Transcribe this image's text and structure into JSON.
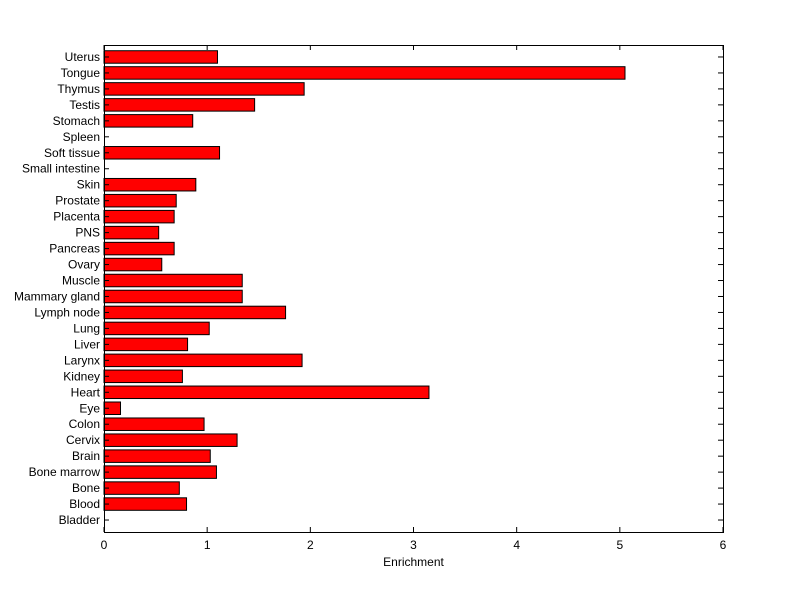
{
  "chart_data": {
    "type": "bar",
    "orientation": "horizontal",
    "title": "",
    "xlabel": "Enrichment",
    "ylabel": "",
    "xlim": [
      0,
      6
    ],
    "xticks": [
      0,
      1,
      2,
      3,
      4,
      5,
      6
    ],
    "grid": false,
    "legend": "none",
    "bar_color": "#ff0000",
    "bar_edge_color": "#000000",
    "categories": [
      "Uterus",
      "Tongue",
      "Thymus",
      "Testis",
      "Stomach",
      "Spleen",
      "Soft tissue",
      "Small intestine",
      "Skin",
      "Prostate",
      "Placenta",
      "PNS",
      "Pancreas",
      "Ovary",
      "Muscle",
      "Mammary gland",
      "Lymph node",
      "Lung",
      "Liver",
      "Larynx",
      "Kidney",
      "Heart",
      "Eye",
      "Colon",
      "Cervix",
      "Brain",
      "Bone marrow",
      "Bone",
      "Blood",
      "Bladder"
    ],
    "values": [
      1.1,
      5.05,
      1.94,
      1.46,
      0.86,
      0.0,
      1.12,
      0.0,
      0.89,
      0.7,
      0.68,
      0.53,
      0.68,
      0.56,
      1.34,
      1.34,
      1.76,
      1.02,
      0.81,
      1.92,
      0.76,
      3.15,
      0.16,
      0.97,
      1.29,
      1.03,
      1.09,
      0.73,
      0.8,
      0.0
    ]
  }
}
